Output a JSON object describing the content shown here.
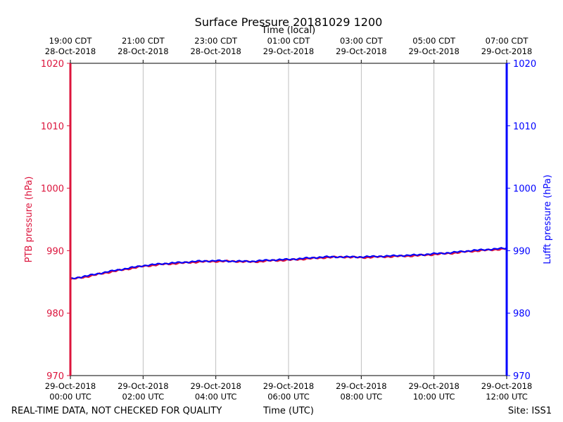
{
  "chart_data": {
    "type": "line",
    "title": "Surface Pressure 20181029 1200",
    "top_xlabel": "Time (local)",
    "xlabel": "Time (UTC)",
    "ylabel_left": "PTB pressure (hPa)",
    "ylabel_right": "Lufft pressure (hPa)",
    "footer_left": "REAL-TIME DATA, NOT CHECKED FOR QUALITY",
    "footer_right": "Site: ISS1",
    "xlim": [
      0,
      12
    ],
    "ylim": [
      970,
      1020
    ],
    "yticks": [
      "970",
      "980",
      "990",
      "1000",
      "1010",
      "1020"
    ],
    "grid": "vertical",
    "colors": {
      "left_axis": "#dc143c",
      "right_axis": "#0000ff",
      "grid": "#b0b0b0"
    },
    "x_ticks_utc": [
      {
        "x": 0,
        "date": "29-Oct-2018",
        "time": "00:00 UTC"
      },
      {
        "x": 2,
        "date": "29-Oct-2018",
        "time": "02:00 UTC"
      },
      {
        "x": 4,
        "date": "29-Oct-2018",
        "time": "04:00 UTC"
      },
      {
        "x": 6,
        "date": "29-Oct-2018",
        "time": "06:00 UTC"
      },
      {
        "x": 8,
        "date": "29-Oct-2018",
        "time": "08:00 UTC"
      },
      {
        "x": 10,
        "date": "29-Oct-2018",
        "time": "10:00 UTC"
      },
      {
        "x": 12,
        "date": "29-Oct-2018",
        "time": "12:00 UTC"
      }
    ],
    "x_ticks_local": [
      {
        "x": 0,
        "time": "19:00 CDT",
        "date": "28-Oct-2018"
      },
      {
        "x": 2,
        "time": "21:00 CDT",
        "date": "28-Oct-2018"
      },
      {
        "x": 4,
        "time": "23:00 CDT",
        "date": "28-Oct-2018"
      },
      {
        "x": 6,
        "time": "01:00 CDT",
        "date": "29-Oct-2018"
      },
      {
        "x": 8,
        "time": "03:00 CDT",
        "date": "29-Oct-2018"
      },
      {
        "x": 10,
        "time": "05:00 CDT",
        "date": "29-Oct-2018"
      },
      {
        "x": 12,
        "time": "07:00 CDT",
        "date": "29-Oct-2018"
      }
    ],
    "series": [
      {
        "name": "PTB pressure",
        "color": "#dc143c",
        "x": [
          0,
          0.5,
          1,
          1.5,
          2,
          2.5,
          3,
          3.5,
          4,
          4.5,
          5,
          5.5,
          6,
          6.5,
          7,
          7.5,
          8,
          8.5,
          9,
          9.5,
          10,
          10.5,
          11,
          11.5,
          12
        ],
        "values": [
          985.4,
          985.9,
          986.5,
          987.0,
          987.5,
          987.8,
          988.0,
          988.2,
          988.3,
          988.3,
          988.2,
          988.4,
          988.5,
          988.7,
          988.9,
          989.0,
          988.9,
          989.0,
          989.1,
          989.2,
          989.4,
          989.6,
          989.9,
          990.1,
          990.3
        ]
      },
      {
        "name": "Lufft pressure",
        "color": "#0000ff",
        "x": [
          0,
          0.5,
          1,
          1.5,
          2,
          2.5,
          3,
          3.5,
          4,
          4.5,
          5,
          5.5,
          6,
          6.5,
          7,
          7.5,
          8,
          8.5,
          9,
          9.5,
          10,
          10.5,
          11,
          11.5,
          12
        ],
        "values": [
          985.5,
          986.0,
          986.6,
          987.1,
          987.6,
          987.9,
          988.1,
          988.3,
          988.4,
          988.3,
          988.3,
          988.5,
          988.6,
          988.8,
          989.0,
          989.0,
          989.0,
          989.1,
          989.2,
          989.3,
          989.5,
          989.7,
          990.0,
          990.2,
          990.4
        ]
      }
    ]
  }
}
